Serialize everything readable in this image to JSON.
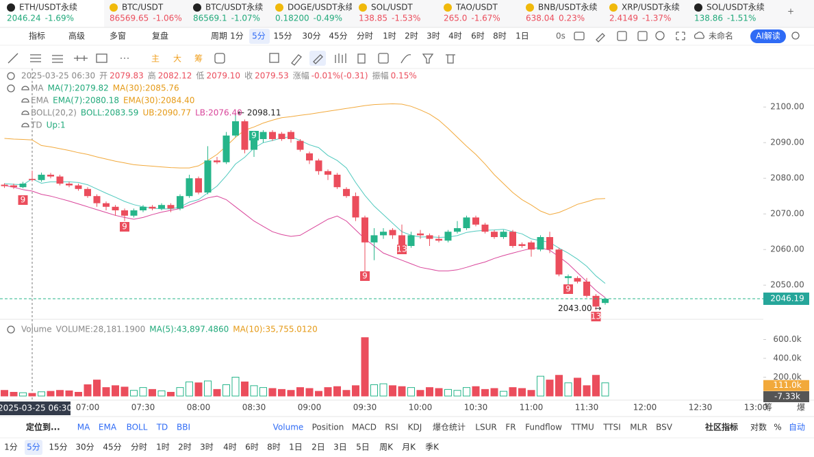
{
  "tickers": [
    {
      "name": "ETH/USDT永续",
      "price": "2046.24",
      "change": "-1.69%",
      "color": "#20a97a"
    },
    {
      "name": "BTC/USDT",
      "price": "86569.65",
      "change": "-1.06%",
      "color": "#eb4d5c"
    },
    {
      "name": "BTC/USDT永续",
      "price": "86569.1",
      "change": "-1.07%",
      "color": "#20a97a"
    },
    {
      "name": "DOGE/USDT永续",
      "price": "0.18200",
      "change": "-0.49%",
      "color": "#20a97a"
    },
    {
      "name": "SOL/USDT",
      "price": "138.85",
      "change": "-1.53%",
      "color": "#eb4d5c"
    },
    {
      "name": "TAO/USDT",
      "price": "265.0",
      "change": "-1.67%",
      "color": "#eb4d5c"
    },
    {
      "name": "BNB/USDT永续",
      "price": "638.04",
      "change": "0.23%",
      "color": "#eb4d5c"
    },
    {
      "name": "XRP/USDT永续",
      "price": "2.4149",
      "change": "-1.37%",
      "color": "#eb4d5c"
    },
    {
      "name": "SOL/USDT永续",
      "price": "138.86",
      "change": "-1.51%",
      "color": "#20a97a"
    }
  ],
  "toolbar": {
    "items": [
      "指标",
      "高级",
      "多窗",
      "复盘",
      "周期"
    ],
    "periods": [
      "1分",
      "5分",
      "15分",
      "30分",
      "45分",
      "分时",
      "1时",
      "2时",
      "3时",
      "4时",
      "6时",
      "8时",
      "1日"
    ],
    "timer": "0s",
    "layout_name": "未命名",
    "ai": "AI解读"
  },
  "draw_tools": [
    "主",
    "大",
    "筹"
  ],
  "chart_data": [
    {
      "type": "candlestick",
      "categories": [
        null,
        null,
        null,
        null,
        null,
        null,
        null,
        null,
        null,
        "07:00",
        null,
        null,
        null,
        null,
        null,
        "07:30",
        null,
        null,
        null,
        null,
        null,
        "08:00",
        null,
        null,
        null,
        null,
        null,
        "08:30",
        null,
        null,
        null,
        null,
        null,
        "09:00",
        null,
        null,
        null,
        null,
        null,
        "09:30",
        null,
        null,
        null,
        null,
        null,
        "10:00",
        null,
        null,
        null,
        null,
        null,
        "10:30",
        null,
        null,
        null,
        null,
        null,
        "11:00",
        null,
        null,
        null,
        null,
        null,
        "11:30",
        null,
        null
      ],
      "x_extra_labels": [
        "12:00",
        "12:30",
        "13:00"
      ],
      "crosshair_label": "2025-03-25 06:30",
      "open": [
        2078.2,
        2078,
        2077.5,
        2079.83,
        2079.5,
        2081,
        2080.5,
        2078.5,
        2078,
        2077,
        2075,
        2073,
        2072,
        2071,
        2069.5,
        2071,
        2072,
        2071.5,
        2072.5,
        2071.5,
        2075,
        2080,
        2076,
        2085,
        2084.5,
        2092,
        2096,
        2088,
        2091,
        2093,
        2092.5,
        2093,
        2090.5,
        2087,
        2085,
        2082,
        2081,
        2077,
        2075,
        2069,
        2062,
        2064,
        2065.5,
        2064,
        2061,
        2064.5,
        2064,
        2063,
        2062.5,
        2065,
        2066,
        2069,
        2067,
        2065,
        2063.5,
        2065,
        2061.5,
        2062,
        2060,
        2063.5,
        2060,
        2052,
        2052,
        2051,
        2047,
        2045
      ],
      "high": [
        2078.6,
        2078.5,
        2079,
        2082.12,
        2081.6,
        2081.5,
        2081,
        2079,
        2078.5,
        2077.5,
        2075.5,
        2073.5,
        2072.5,
        2071.5,
        2071.5,
        2072.5,
        2072.5,
        2073,
        2073,
        2075.5,
        2081,
        2080.5,
        2089,
        2086,
        2093,
        2098.11,
        2096.5,
        2093,
        2093.5,
        2093.5,
        2093,
        2093.5,
        2091,
        2087.5,
        2085.5,
        2082.5,
        2081.5,
        2077.5,
        2076,
        2069.5,
        2066,
        2066,
        2066,
        2067,
        2065,
        2065.5,
        2064.5,
        2064,
        2065.5,
        2068,
        2069.5,
        2069.5,
        2067.5,
        2065.5,
        2065.5,
        2065.5,
        2062,
        2062.5,
        2064,
        2065,
        2060.5,
        2053,
        2052.5,
        2052,
        2047.5,
        2046.5
      ],
      "low": [
        2077.3,
        2077,
        2077.2,
        2079.1,
        2079,
        2080,
        2078,
        2077.5,
        2076.5,
        2074.5,
        2072,
        2071,
        2069.5,
        2068,
        2069,
        2070.5,
        2071,
        2071,
        2070.5,
        2071,
        2074.5,
        2075.5,
        2075.5,
        2084,
        2084,
        2091.5,
        2087,
        2086,
        2090,
        2090.5,
        2090.5,
        2090,
        2087.5,
        2084,
        2081,
        2079.5,
        2077,
        2074.5,
        2068,
        2053,
        2057,
        2063,
        2063,
        2060,
        2060.5,
        2063,
        2061,
        2062,
        2062,
        2064.5,
        2065.5,
        2066.5,
        2064.5,
        2063,
        2063,
        2060.5,
        2060.5,
        2058,
        2059.5,
        2059,
        2052.5,
        2048,
        2050.5,
        2046.5,
        2043,
        2044.5
      ],
      "close": [
        2077.8,
        2077.5,
        2078.5,
        2079.53,
        2081,
        2080.5,
        2078.5,
        2078,
        2077,
        2075,
        2073,
        2072,
        2071,
        2069.5,
        2071,
        2072,
        2071.5,
        2072.5,
        2071.5,
        2075,
        2080,
        2076,
        2085,
        2084.5,
        2092,
        2096,
        2088,
        2092,
        2093,
        2091,
        2091,
        2091,
        2088,
        2085,
        2082,
        2081,
        2077.5,
        2075,
        2069,
        2062,
        2064,
        2065,
        2064,
        2061,
        2064,
        2064,
        2063,
        2062.5,
        2065,
        2066,
        2069,
        2067,
        2065,
        2063.5,
        2065,
        2061,
        2061,
        2060,
        2063.5,
        2060,
        2053,
        2052.5,
        2051,
        2047,
        2044,
        2046.19
      ],
      "up_color": "#26b58a",
      "down_color": "#eb4d5c",
      "overlays": [
        {
          "color": "#f2a93b",
          "values": [
            2091.2,
            2091,
            2090.9,
            2090.77,
            2089.2,
            2088.8,
            2088.3,
            2087.8,
            2087.2,
            2086.7,
            2086,
            2085.4,
            2084.8,
            2084.3,
            2083.8,
            2083.6,
            2083.4,
            2083.2,
            2083,
            2082.9,
            2082.9,
            2083.5,
            2085,
            2086.7,
            2089,
            2091.5,
            2093.5,
            2094.4,
            2095.5,
            2096.3,
            2097,
            2097.3,
            2097.7,
            2098,
            2098.4,
            2098.8,
            2099.2,
            2099.6,
            2100,
            2100.4,
            2100.7,
            2100.8,
            2100.9,
            2100.8,
            2100.2,
            2099.2,
            2098,
            2096.3,
            2094,
            2091.5,
            2089,
            2086.7,
            2084,
            2081,
            2078.5,
            2076,
            2074,
            2072.5,
            2070.8,
            2069.8,
            2070.4,
            2071.5,
            2072.7,
            2073.4,
            2074.2,
            2074.3
          ]
        },
        {
          "color": "#4fc9be",
          "values": [
            2078.5,
            2078.3,
            2078.2,
            2079.82,
            2078.6,
            2079,
            2079,
            2079,
            2078.8,
            2078.2,
            2077,
            2075.8,
            2074.7,
            2073.5,
            2072.6,
            2072,
            2071.6,
            2071.4,
            2071.4,
            2071.9,
            2073.3,
            2074,
            2075.9,
            2077.8,
            2080.7,
            2084,
            2085.9,
            2088.5,
            2090,
            2090.6,
            2091.3,
            2091.7,
            2090.6,
            2089.4,
            2088.6,
            2086.4,
            2085,
            2082.9,
            2078.8,
            2075.2,
            2072.2,
            2069.8,
            2067.4,
            2065,
            2064,
            2063.5,
            2063.6,
            2063.4,
            2063.5,
            2063.9,
            2064.8,
            2065.2,
            2065.4,
            2065.5,
            2065.7,
            2065,
            2064.4,
            2063,
            2062.5,
            2062,
            2060.4,
            2059,
            2057.3,
            2055.3,
            2052.6,
            2050.5
          ]
        },
        {
          "color": "#d9449a",
          "values": [
            2078,
            2077.5,
            2076.8,
            2076.4,
            2075.5,
            2075,
            2074.3,
            2073.6,
            2072.8,
            2072,
            2071.2,
            2070.4,
            2069.6,
            2069,
            2068.5,
            2069,
            2069.8,
            2070.5,
            2071,
            2071.5,
            2072.5,
            2073.5,
            2074.5,
            2075,
            2074,
            2072,
            2070,
            2068,
            2066.5,
            2065,
            2064.2,
            2063.7,
            2064,
            2065.5,
            2067,
            2068.5,
            2069.4,
            2068,
            2065.5,
            2063,
            2061,
            2059,
            2058,
            2057,
            2056,
            2055,
            2054.5,
            2054,
            2054,
            2054.3,
            2055,
            2055.8,
            2056.5,
            2057.5,
            2058.3,
            2059,
            2059.7,
            2060.3,
            2060.5,
            2059.8,
            2058,
            2056,
            2053.5,
            2051,
            2048.5,
            2046.5
          ]
        }
      ],
      "ylim": [
        2039,
        2111
      ],
      "yticks": [
        {
          "value": 2050,
          "label": "2050.00"
        },
        {
          "value": 2060,
          "label": "2060.00"
        },
        {
          "value": 2070,
          "label": "2070.00"
        },
        {
          "value": 2080,
          "label": "2080.00"
        },
        {
          "value": 2090,
          "label": "2090.00"
        },
        {
          "value": 2100,
          "label": "2100.00"
        }
      ],
      "last_price": {
        "value": 2046.19,
        "label": "2046.19"
      },
      "max_marker": {
        "value": 2098.11,
        "label": "← 2098.11"
      },
      "min_marker": {
        "value": 2043.0,
        "label": "2043.00 →"
      },
      "td_labels": [
        "9",
        "9",
        "9",
        "9",
        "13",
        "9",
        "13"
      ],
      "legend_rows": [
        [
          {
            "text": "2025-03-25 06:30",
            "color": "#888888"
          },
          {
            "text": "开",
            "color": "#888888"
          },
          {
            "text": "2079.83",
            "color": "#eb4d5c"
          },
          {
            "text": "高",
            "color": "#888888"
          },
          {
            "text": "2082.12",
            "color": "#eb4d5c"
          },
          {
            "text": "低",
            "color": "#888888"
          },
          {
            "text": "2079.10",
            "color": "#eb4d5c"
          },
          {
            "text": "收",
            "color": "#888888"
          },
          {
            "text": "2079.53",
            "color": "#eb4d5c"
          },
          {
            "text": "涨幅",
            "color": "#888888"
          },
          {
            "text": "-0.01%(-0.31)",
            "color": "#eb4d5c"
          },
          {
            "text": "振幅",
            "color": "#888888"
          },
          {
            "text": "0.15%",
            "color": "#eb4d5c"
          }
        ],
        [
          {
            "text": "MA",
            "color": "#888888"
          },
          {
            "text": "MA(7):2079.82",
            "color": "#20a97a"
          },
          {
            "text": "MA(30):2085.76",
            "color": "#e59a16"
          }
        ],
        [
          {
            "text": "EMA",
            "color": "#888888"
          },
          {
            "text": "EMA(7):2080.18",
            "color": "#20a97a"
          },
          {
            "text": "EMA(30):2084.40",
            "color": "#e59a16"
          }
        ],
        [
          {
            "text": "BOLL(20,2)",
            "color": "#888888"
          },
          {
            "text": "BOLL:2083.59",
            "color": "#20a97a"
          },
          {
            "text": "UB:2090.77",
            "color": "#e59a16"
          },
          {
            "text": "LB:2076.40",
            "color": "#d9449a"
          }
        ],
        [
          {
            "text": "TD",
            "color": "#888888"
          },
          {
            "text": "Up:1",
            "color": "#20a97a"
          }
        ]
      ]
    },
    {
      "type": "bar",
      "values": [
        60000,
        40000,
        35000,
        28181.19,
        45000,
        50000,
        60000,
        55000,
        40000,
        120000,
        170000,
        90000,
        110000,
        95000,
        60000,
        90000,
        70000,
        55000,
        40000,
        90000,
        150000,
        140000,
        160000,
        70000,
        120000,
        200000,
        150000,
        110000,
        90000,
        80000,
        70000,
        60000,
        90000,
        80000,
        50000,
        90000,
        100000,
        60000,
        110000,
        620000,
        120000,
        130000,
        110000,
        100000,
        90000,
        60000,
        90000,
        80000,
        70000,
        60000,
        90000,
        100000,
        70000,
        80000,
        50000,
        90000,
        80000,
        60000,
        210000,
        170000,
        220000,
        140000,
        190000,
        110000,
        220000,
        140000
      ],
      "ylim": [
        0,
        640000
      ],
      "yticks": [
        {
          "value": 200000,
          "label": "200.0k"
        },
        {
          "value": 400000,
          "label": "400.0k"
        },
        {
          "value": 600000,
          "label": "600.0k"
        }
      ],
      "markers": [
        {
          "value": 111000,
          "label": "111.0k",
          "color": "#f2a93b"
        },
        {
          "value": -7330,
          "label": "-7.33k",
          "color": "#555555"
        }
      ],
      "legend": [
        {
          "text": "Volume",
          "color": "#888888"
        },
        {
          "text": "VOLUME:28,181.1900",
          "color": "#888888"
        },
        {
          "text": "MA(5):43,897.4860",
          "color": "#20a97a"
        },
        {
          "text": "MA(10):35,755.0120",
          "color": "#e59a16"
        }
      ]
    }
  ],
  "axis_buttons": [
    "筹",
    "爆"
  ],
  "indicators": {
    "locate": "定位到...",
    "main": [
      "MA",
      "EMA",
      "BOLL",
      "TD",
      "BBI"
    ],
    "sub": [
      "Volume",
      "Position",
      "MACD",
      "RSI",
      "KDJ",
      "爆仓统计",
      "LSUR",
      "FR",
      "Fundflow",
      "TTMU",
      "TTSI",
      "MLR",
      "BSV"
    ],
    "right": [
      "社区指标",
      "对数",
      "%",
      "自动"
    ]
  },
  "periods": [
    "1分",
    "5分",
    "15分",
    "30分",
    "45分",
    "分时",
    "1时",
    "2时",
    "3时",
    "4时",
    "6时",
    "8时",
    "1日",
    "2日",
    "3日",
    "5日",
    "周K",
    "月K",
    "季K"
  ]
}
